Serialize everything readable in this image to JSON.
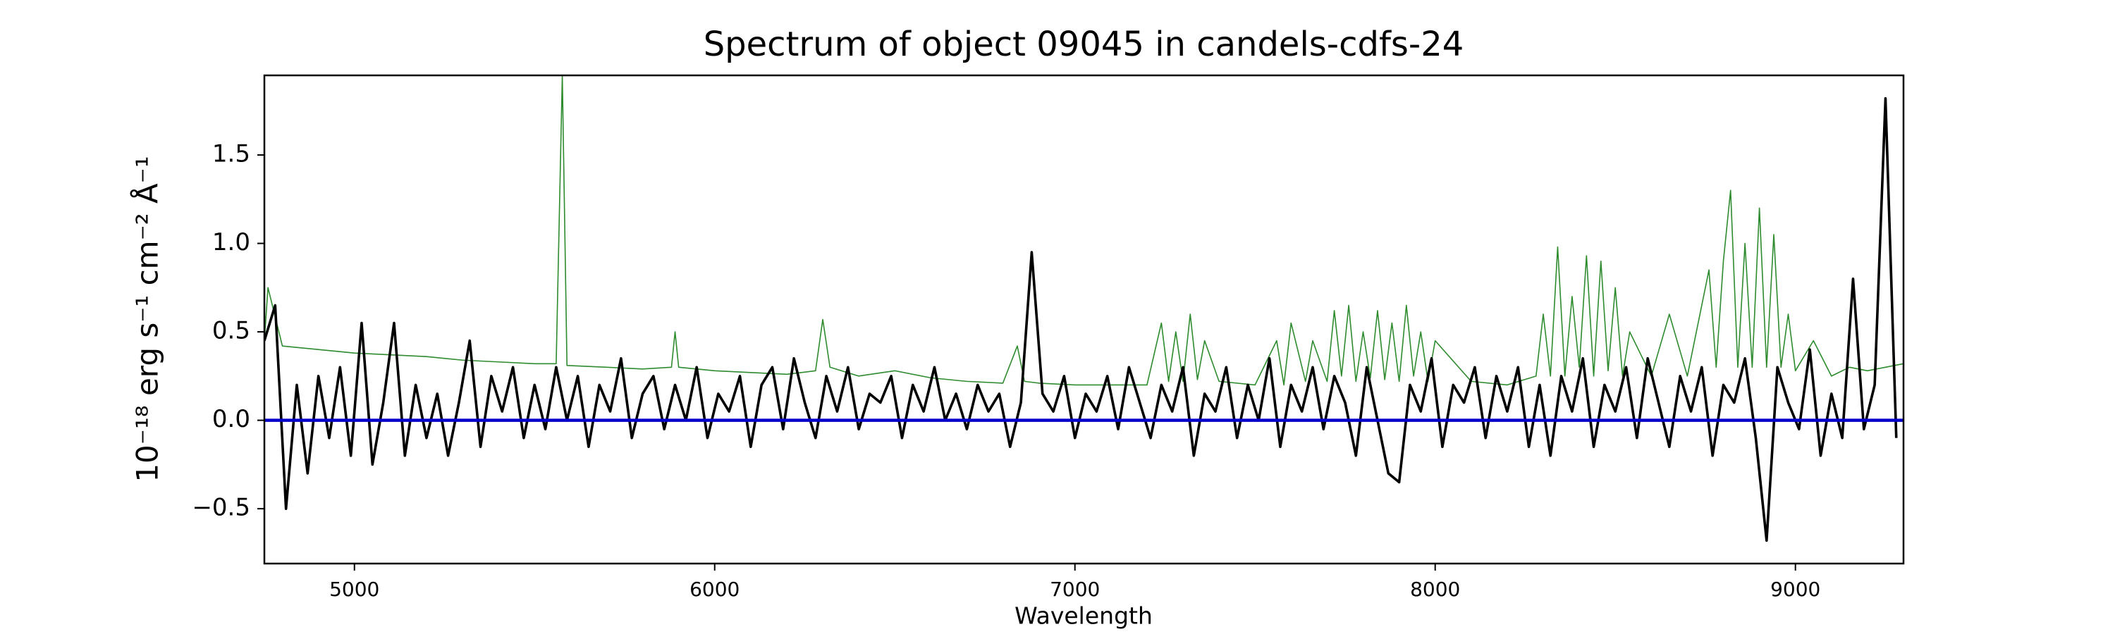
{
  "chart_data": {
    "type": "line",
    "title": "Spectrum of object 09045 in candels-cdfs-24",
    "xlabel": "Wavelength",
    "ylabel": "10⁻¹⁸ erg s⁻¹ cm⁻² Å⁻¹",
    "xlim": [
      4750,
      9300
    ],
    "ylim": [
      -0.81,
      1.95
    ],
    "xticks": [
      5000,
      6000,
      7000,
      8000,
      9000
    ],
    "yticks": [
      {
        "value": -0.5,
        "label": "−0.5"
      },
      {
        "value": 0,
        "label": "0.0"
      },
      0.5,
      {
        "value": 1,
        "label": "1.0"
      },
      1.5
    ],
    "grid": false,
    "series": [
      {
        "color": "#2e8b2e",
        "width": 1.6,
        "x": [
          4750,
          4760,
          4800,
          4900,
          5000,
          5100,
          5200,
          5300,
          5400,
          5500,
          5560,
          5577,
          5590,
          5700,
          5800,
          5880,
          5890,
          5900,
          6000,
          6100,
          6200,
          6280,
          6300,
          6320,
          6400,
          6500,
          6600,
          6700,
          6800,
          6840,
          6860,
          6900,
          7000,
          7100,
          7200,
          7240,
          7260,
          7280,
          7300,
          7320,
          7340,
          7360,
          7400,
          7500,
          7560,
          7580,
          7600,
          7640,
          7660,
          7700,
          7720,
          7740,
          7760,
          7780,
          7800,
          7820,
          7840,
          7860,
          7880,
          7900,
          7920,
          7940,
          7960,
          7980,
          8000,
          8100,
          8200,
          8280,
          8300,
          8320,
          8340,
          8360,
          8380,
          8400,
          8420,
          8440,
          8460,
          8480,
          8500,
          8520,
          8540,
          8600,
          8650,
          8700,
          8760,
          8780,
          8800,
          8820,
          8840,
          8860,
          8880,
          8900,
          8920,
          8940,
          8960,
          8980,
          9000,
          9050,
          9100,
          9150,
          9200,
          9250,
          9300
        ],
        "values": [
          0.45,
          0.75,
          0.42,
          0.4,
          0.38,
          0.37,
          0.36,
          0.34,
          0.33,
          0.32,
          0.32,
          1.95,
          0.31,
          0.3,
          0.29,
          0.3,
          0.5,
          0.3,
          0.28,
          0.27,
          0.26,
          0.28,
          0.57,
          0.3,
          0.25,
          0.28,
          0.24,
          0.22,
          0.21,
          0.42,
          0.22,
          0.21,
          0.2,
          0.2,
          0.2,
          0.55,
          0.22,
          0.5,
          0.22,
          0.6,
          0.23,
          0.45,
          0.22,
          0.2,
          0.45,
          0.2,
          0.55,
          0.22,
          0.45,
          0.22,
          0.62,
          0.25,
          0.65,
          0.22,
          0.5,
          0.24,
          0.62,
          0.23,
          0.55,
          0.22,
          0.65,
          0.25,
          0.5,
          0.22,
          0.45,
          0.22,
          0.2,
          0.25,
          0.6,
          0.25,
          0.98,
          0.25,
          0.7,
          0.3,
          0.93,
          0.25,
          0.9,
          0.28,
          0.75,
          0.25,
          0.5,
          0.25,
          0.6,
          0.25,
          0.85,
          0.3,
          0.9,
          1.3,
          0.3,
          1.0,
          0.3,
          1.2,
          0.3,
          1.05,
          0.3,
          0.6,
          0.28,
          0.45,
          0.25,
          0.3,
          0.28,
          0.3,
          0.32
        ]
      },
      {
        "color": "#000000",
        "width": 3.6,
        "x": [
          4750,
          4780,
          4810,
          4840,
          4870,
          4900,
          4930,
          4960,
          4990,
          5020,
          5050,
          5080,
          5110,
          5140,
          5170,
          5200,
          5230,
          5260,
          5290,
          5320,
          5350,
          5380,
          5410,
          5440,
          5470,
          5500,
          5530,
          5560,
          5590,
          5620,
          5650,
          5680,
          5710,
          5740,
          5770,
          5800,
          5830,
          5860,
          5890,
          5920,
          5950,
          5980,
          6010,
          6040,
          6070,
          6100,
          6130,
          6160,
          6190,
          6220,
          6250,
          6280,
          6310,
          6340,
          6370,
          6400,
          6430,
          6460,
          6490,
          6520,
          6550,
          6580,
          6610,
          6640,
          6670,
          6700,
          6730,
          6760,
          6790,
          6820,
          6850,
          6880,
          6910,
          6940,
          6970,
          7000,
          7030,
          7060,
          7090,
          7120,
          7150,
          7180,
          7210,
          7240,
          7270,
          7300,
          7330,
          7360,
          7390,
          7420,
          7450,
          7480,
          7510,
          7540,
          7570,
          7600,
          7630,
          7660,
          7690,
          7720,
          7750,
          7780,
          7810,
          7840,
          7870,
          7900,
          7930,
          7960,
          7990,
          8020,
          8050,
          8080,
          8110,
          8140,
          8170,
          8200,
          8230,
          8260,
          8290,
          8320,
          8350,
          8380,
          8410,
          8440,
          8470,
          8500,
          8530,
          8560,
          8590,
          8620,
          8650,
          8680,
          8710,
          8740,
          8770,
          8800,
          8830,
          8860,
          8890,
          8920,
          8950,
          8980,
          9010,
          9040,
          9070,
          9100,
          9130,
          9160,
          9190,
          9220,
          9250,
          9280
        ],
        "values": [
          0.45,
          0.65,
          -0.5,
          0.2,
          -0.3,
          0.25,
          -0.1,
          0.3,
          -0.2,
          0.55,
          -0.25,
          0.1,
          0.55,
          -0.2,
          0.2,
          -0.1,
          0.15,
          -0.2,
          0.1,
          0.45,
          -0.15,
          0.25,
          0.05,
          0.3,
          -0.1,
          0.2,
          -0.05,
          0.3,
          0.0,
          0.25,
          -0.15,
          0.2,
          0.05,
          0.35,
          -0.1,
          0.15,
          0.25,
          -0.05,
          0.2,
          0.0,
          0.3,
          -0.1,
          0.15,
          0.05,
          0.25,
          -0.15,
          0.2,
          0.3,
          -0.05,
          0.35,
          0.1,
          -0.1,
          0.25,
          0.05,
          0.3,
          -0.05,
          0.15,
          0.1,
          0.25,
          -0.1,
          0.2,
          0.05,
          0.3,
          0.0,
          0.15,
          -0.05,
          0.2,
          0.05,
          0.15,
          -0.15,
          0.1,
          0.95,
          0.15,
          0.05,
          0.25,
          -0.1,
          0.15,
          0.05,
          0.25,
          -0.05,
          0.3,
          0.1,
          -0.1,
          0.2,
          0.05,
          0.3,
          -0.2,
          0.15,
          0.05,
          0.3,
          -0.1,
          0.2,
          0.0,
          0.35,
          -0.15,
          0.2,
          0.05,
          0.3,
          -0.05,
          0.25,
          0.1,
          -0.2,
          0.3,
          0.0,
          -0.3,
          -0.35,
          0.2,
          0.05,
          0.35,
          -0.15,
          0.2,
          0.1,
          0.3,
          -0.1,
          0.25,
          0.05,
          0.3,
          -0.15,
          0.2,
          -0.2,
          0.25,
          0.05,
          0.35,
          -0.15,
          0.2,
          0.05,
          0.3,
          -0.1,
          0.35,
          0.1,
          -0.15,
          0.25,
          0.05,
          0.3,
          -0.2,
          0.2,
          0.1,
          0.35,
          -0.1,
          -0.68,
          0.3,
          0.1,
          -0.05,
          0.4,
          -0.2,
          0.15,
          -0.1,
          0.8,
          -0.05,
          0.2,
          1.82,
          -0.1
        ]
      },
      {
        "color": "#0000cc",
        "width": 4.5,
        "x": [
          4750,
          9300
        ],
        "values": [
          0,
          0
        ]
      }
    ]
  }
}
